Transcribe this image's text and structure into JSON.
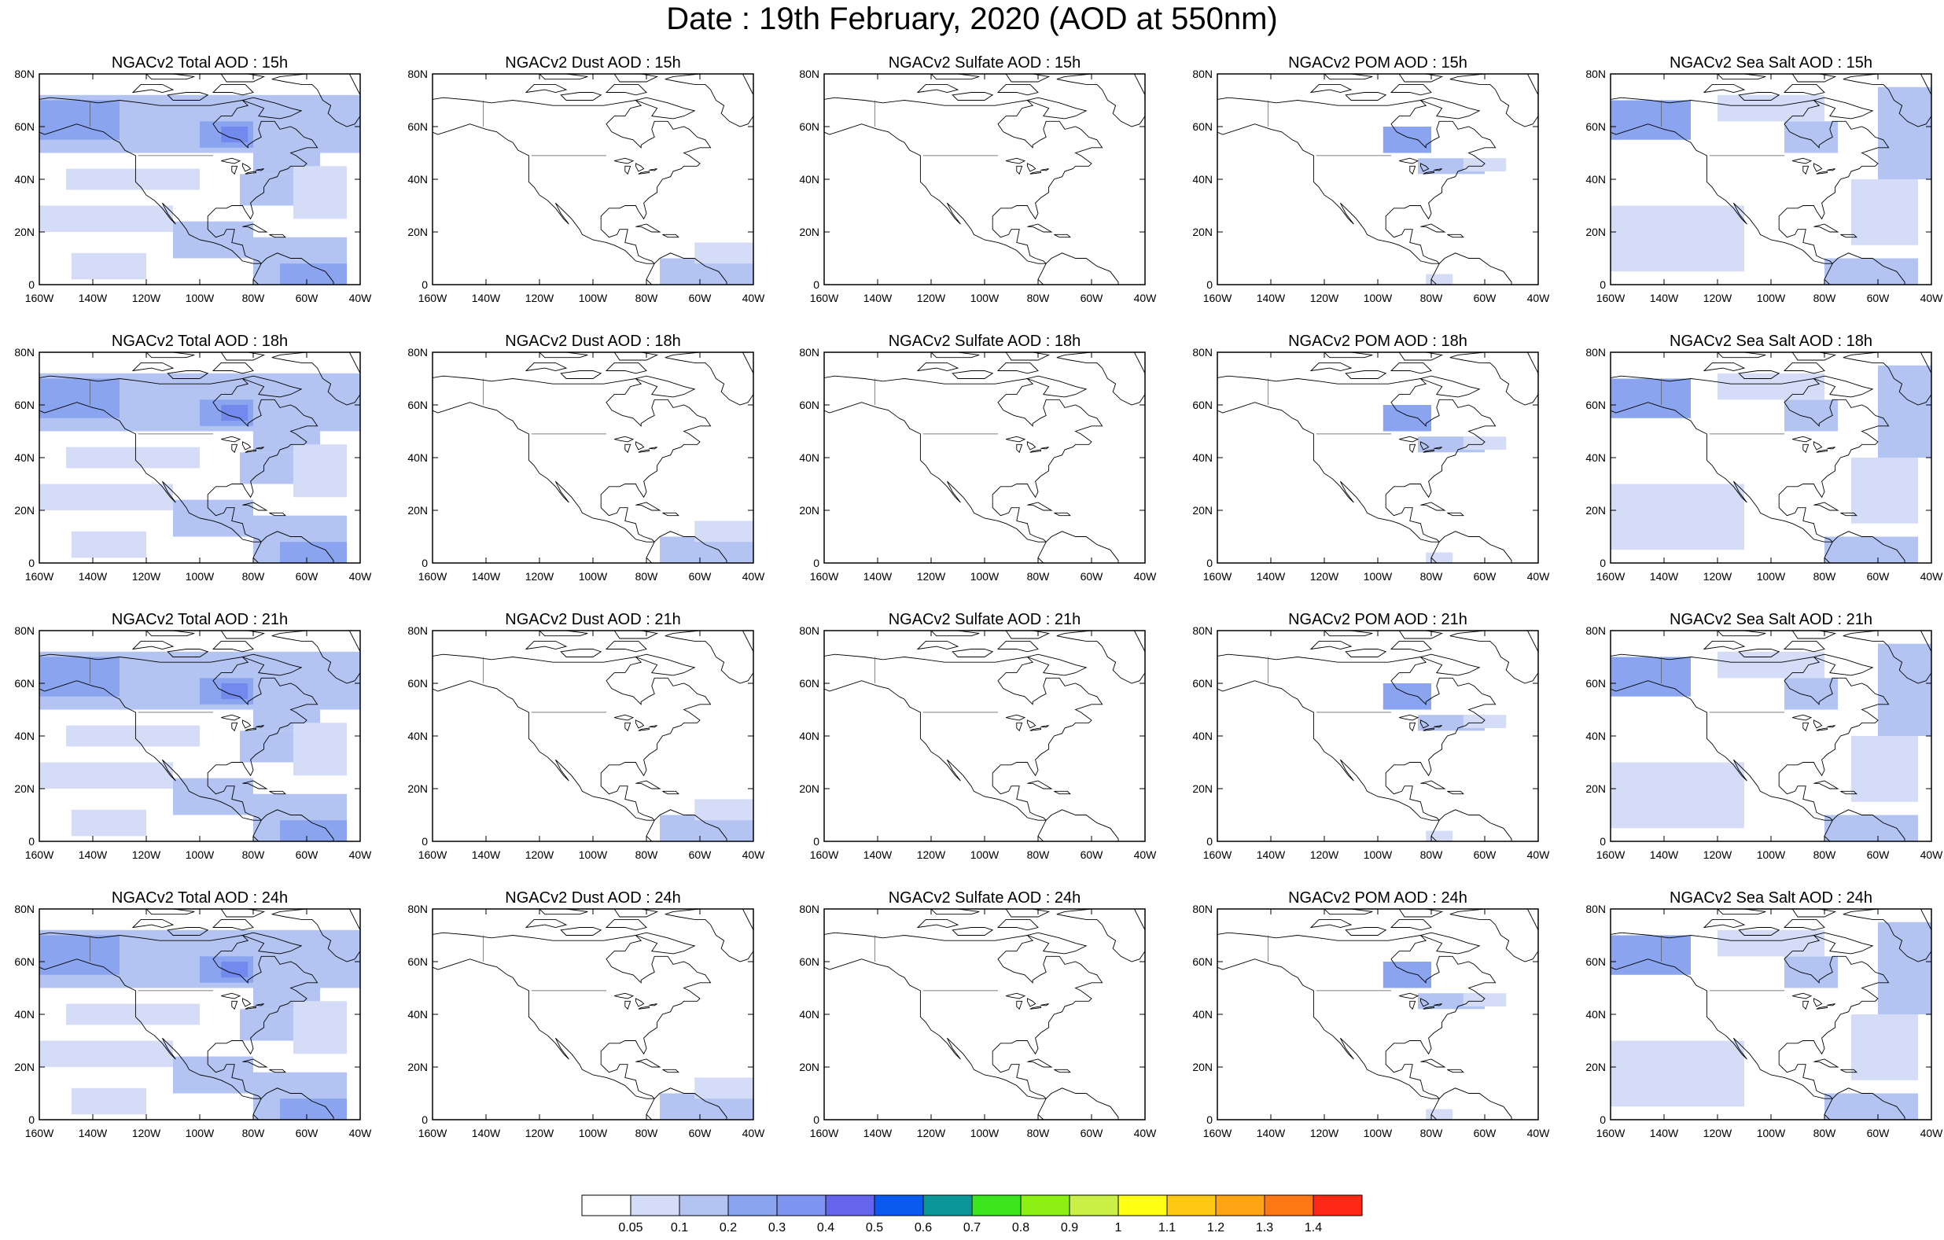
{
  "title": "Date : 19th February, 2020 (AOD at 550nm)",
  "x_tick_labels": [
    "160W",
    "140W",
    "120W",
    "100W",
    "80W",
    "60W",
    "40W"
  ],
  "y_tick_labels": [
    "0",
    "20N",
    "40N",
    "60N",
    "80N"
  ],
  "shade_colors": {
    "very_light": "#d4dcf7",
    "light": "#b3c4f2",
    "medium": "#8aa4f0",
    "strong": "#7289ee"
  },
  "panels": [
    {
      "title": "NGACv2 Total AOD : 15h",
      "field": "total"
    },
    {
      "title": "NGACv2 Dust AOD : 15h",
      "field": "dust"
    },
    {
      "title": "NGACv2 Sulfate AOD : 15h",
      "field": "sulfate"
    },
    {
      "title": "NGACv2 POM AOD : 15h",
      "field": "pom"
    },
    {
      "title": "NGACv2 Sea Salt AOD : 15h",
      "field": "seasalt"
    },
    {
      "title": "NGACv2 Total AOD : 18h",
      "field": "total"
    },
    {
      "title": "NGACv2 Dust AOD : 18h",
      "field": "dust"
    },
    {
      "title": "NGACv2 Sulfate AOD : 18h",
      "field": "sulfate"
    },
    {
      "title": "NGACv2 POM AOD : 18h",
      "field": "pom"
    },
    {
      "title": "NGACv2 Sea Salt AOD : 18h",
      "field": "seasalt"
    },
    {
      "title": "NGACv2 Total AOD : 21h",
      "field": "total"
    },
    {
      "title": "NGACv2 Dust AOD : 21h",
      "field": "dust"
    },
    {
      "title": "NGACv2 Sulfate AOD : 21h",
      "field": "sulfate"
    },
    {
      "title": "NGACv2 POM AOD : 21h",
      "field": "pom"
    },
    {
      "title": "NGACv2 Sea Salt AOD : 21h",
      "field": "seasalt"
    },
    {
      "title": "NGACv2 Total AOD : 24h",
      "field": "total"
    },
    {
      "title": "NGACv2 Dust AOD : 24h",
      "field": "dust"
    },
    {
      "title": "NGACv2 Sulfate AOD : 24h",
      "field": "sulfate"
    },
    {
      "title": "NGACv2 POM AOD : 24h",
      "field": "pom"
    },
    {
      "title": "NGACv2 Sea Salt  AOD : 24h",
      "field": "seasalt"
    }
  ],
  "colorbar": {
    "colors": [
      "#ffffff",
      "#d4dcf7",
      "#b3c4f2",
      "#8aa4f0",
      "#7f95f2",
      "#6464ee",
      "#0a5af0",
      "#0a9696",
      "#3ce61e",
      "#8cf014",
      "#c8f046",
      "#ffff14",
      "#ffc814",
      "#ffa514",
      "#ff7814",
      "#ff2814"
    ],
    "labels": [
      "0.05",
      "0.1",
      "0.2",
      "0.3",
      "0.4",
      "0.5",
      "0.6",
      "0.7",
      "0.8",
      "0.9",
      "1",
      "1.1",
      "1.2",
      "1.3",
      "1.4"
    ]
  }
}
